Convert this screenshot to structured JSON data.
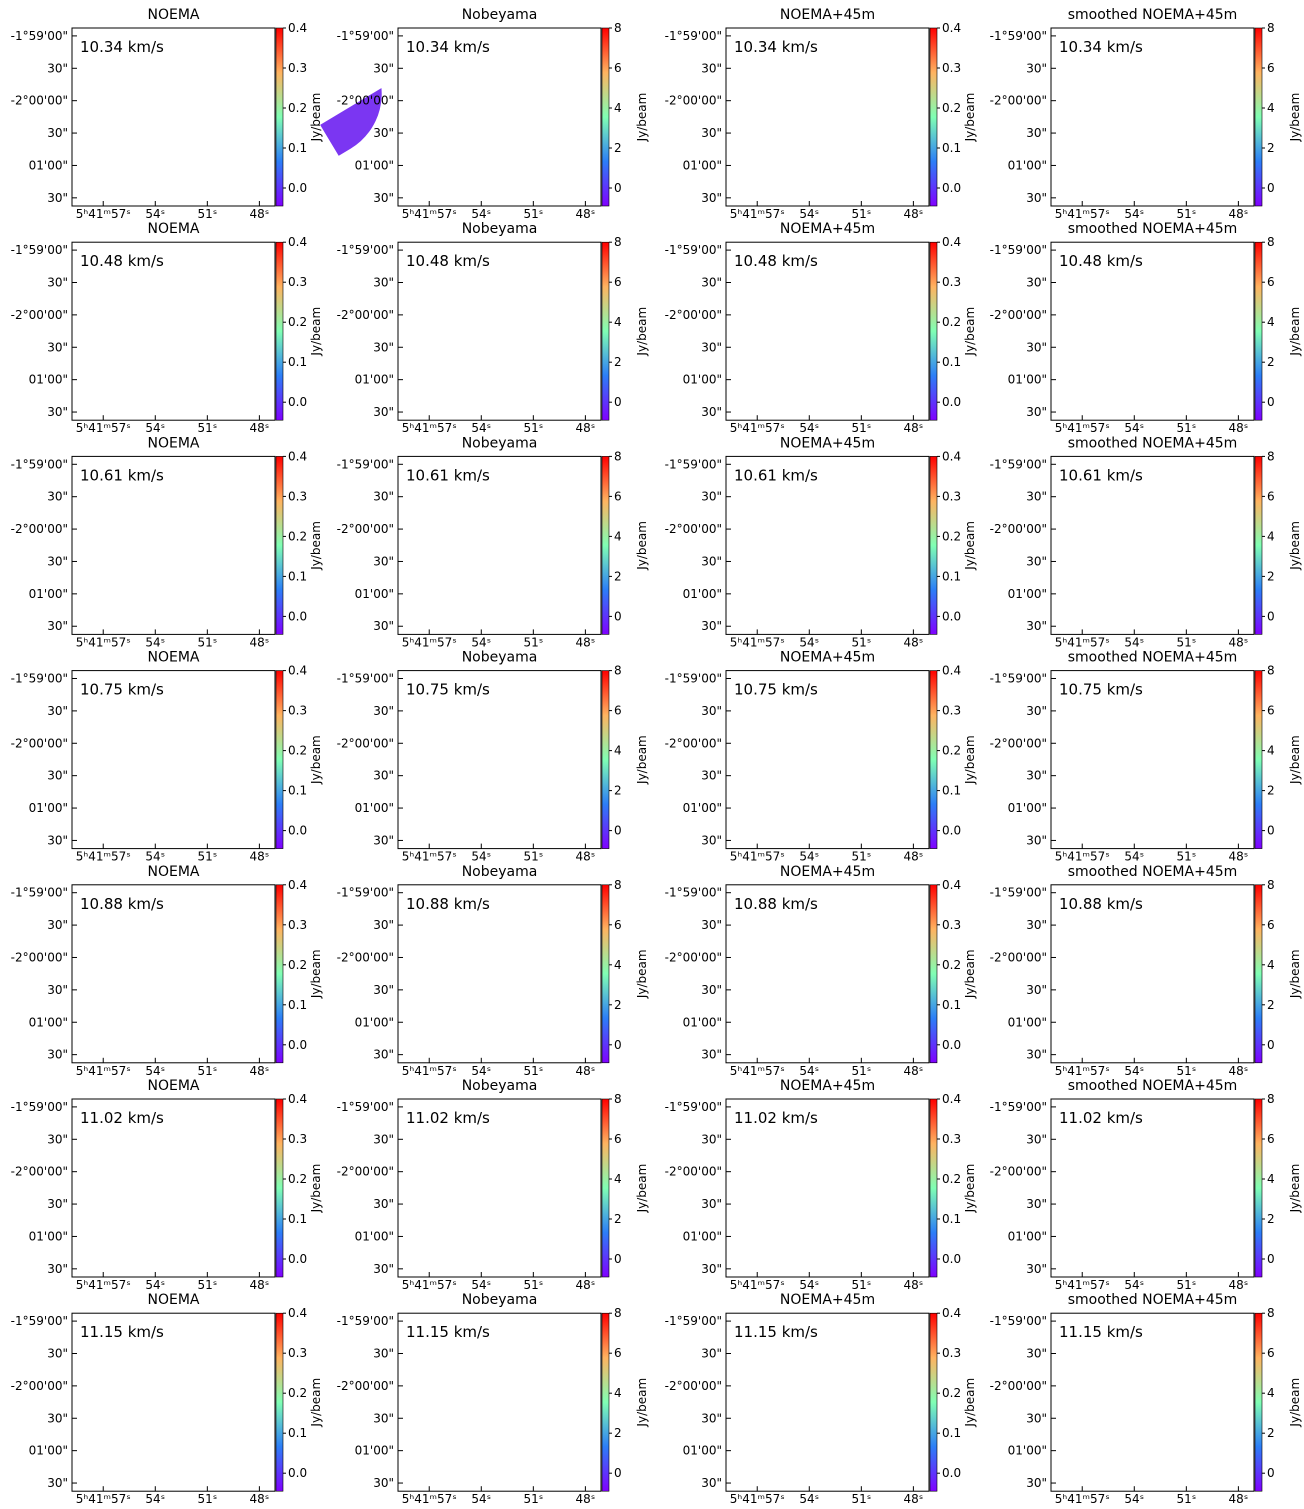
{
  "chart_data": {
    "type": "channel-maps",
    "colormap": "rainbow",
    "panel_titles": [
      "NOEMA",
      "Nobeyama",
      "NOEMA+45m",
      "smoothed NOEMA+45m"
    ],
    "velocities": [
      "10.34 km/s",
      "10.48 km/s",
      "10.61 km/s",
      "10.75 km/s",
      "10.88 km/s",
      "11.02 km/s",
      "11.15 km/s"
    ],
    "xlim": [
      20518.8,
      20507.1
    ],
    "xticks": [
      {
        "value": 20517,
        "label": "5ʰ41ᵐ57ˢ"
      },
      {
        "value": 20514,
        "label": "54ˢ"
      },
      {
        "value": 20511,
        "label": "51ˢ"
      },
      {
        "value": 20508,
        "label": "48ˢ"
      }
    ],
    "ylim": [
      -2.0271,
      -1.9813
    ],
    "yticks": [
      {
        "value": -1.983333,
        "label": "-1°59'00\""
      },
      {
        "value": -1.991667,
        "label": "30\""
      },
      {
        "value": -2.0,
        "label": "-2°00'00\""
      },
      {
        "value": -2.008333,
        "label": "30\""
      },
      {
        "value": -2.016667,
        "label": "01'00\""
      },
      {
        "value": -2.025,
        "label": "30\""
      }
    ],
    "colorbars": [
      {
        "label": "Jy/beam",
        "lim": [
          -0.045,
          0.4
        ],
        "ticks": [
          {
            "value": 0,
            "label": "0.0"
          },
          0.1,
          0.2,
          0.3,
          0.4
        ]
      },
      {
        "label": "Jy/beam",
        "lim": [
          -0.9,
          8
        ],
        "ticks": [
          0,
          2,
          4,
          6,
          8
        ]
      },
      {
        "label": "Jy/beam",
        "lim": [
          -0.045,
          0.4
        ],
        "ticks": [
          {
            "value": 0,
            "label": "0.0"
          },
          0.1,
          0.2,
          0.3,
          0.4
        ]
      },
      {
        "label": "Jy/beam",
        "lim": [
          -0.9,
          8
        ],
        "ticks": [
          0,
          2,
          4,
          6,
          8
        ]
      }
    ]
  }
}
